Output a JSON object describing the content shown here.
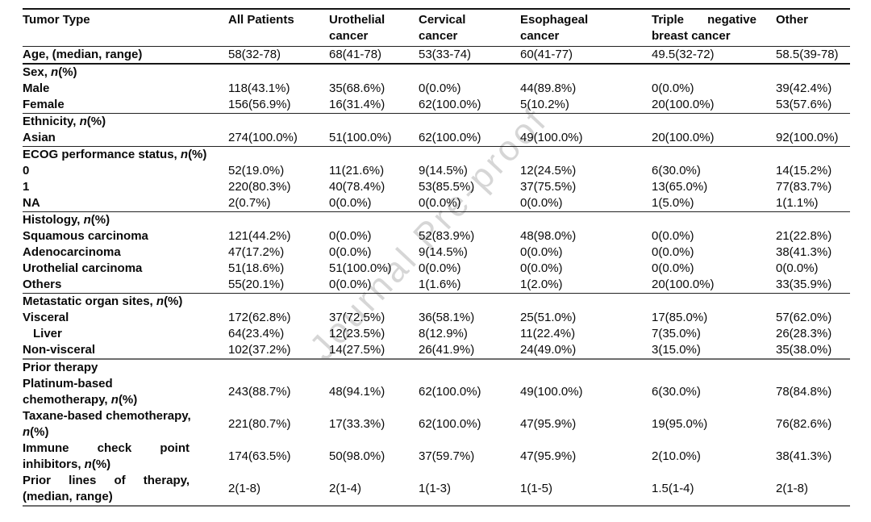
{
  "watermark": {
    "text": "Journal Pre-proof"
  },
  "table": {
    "columns": [
      {
        "lines": [
          {
            "parts": [
              {
                "t": "Tumor Type"
              }
            ]
          }
        ]
      },
      {
        "lines": [
          {
            "parts": [
              {
                "t": "All Patients"
              }
            ]
          }
        ]
      },
      {
        "lines": [
          {
            "parts": [
              {
                "t": "Urothelial"
              }
            ]
          },
          {
            "parts": [
              {
                "t": "cancer"
              }
            ]
          }
        ]
      },
      {
        "lines": [
          {
            "parts": [
              {
                "t": "Cervical"
              }
            ]
          },
          {
            "parts": [
              {
                "t": "cancer"
              }
            ]
          }
        ]
      },
      {
        "lines": [
          {
            "parts": [
              {
                "t": "Esophageal"
              }
            ]
          },
          {
            "parts": [
              {
                "t": "cancer"
              }
            ]
          }
        ]
      },
      {
        "lines": [
          {
            "parts": [
              {
                "t": "Triple negative"
              }
            ],
            "j": true
          },
          {
            "parts": [
              {
                "t": "breast cancer"
              }
            ]
          }
        ]
      },
      {
        "lines": [
          {
            "parts": [
              {
                "t": "Other"
              }
            ]
          }
        ]
      }
    ],
    "rows": [
      {
        "label": [
          {
            "parts": [
              {
                "t": "Age, (median, range)"
              }
            ]
          }
        ],
        "values": [
          "58(32-78)",
          "68(41-78)",
          "53(33-74)",
          "60(41-77)",
          "49.5(32-72)",
          "58.5(39-78)"
        ],
        "border": "b2"
      },
      {
        "label": [
          {
            "parts": [
              {
                "t": "Sex, "
              },
              {
                "t": "n",
                "i": true
              },
              {
                "t": "(%)"
              }
            ]
          }
        ],
        "values": [
          "",
          "",
          "",
          "",
          "",
          ""
        ]
      },
      {
        "label": [
          {
            "parts": [
              {
                "t": "Male"
              }
            ]
          }
        ],
        "values": [
          "118(43.1%)",
          "35(68.6%)",
          "0(0.0%)",
          "44(89.8%)",
          "0(0.0%)",
          "39(42.4%)"
        ]
      },
      {
        "label": [
          {
            "parts": [
              {
                "t": "Female"
              }
            ]
          }
        ],
        "values": [
          "156(56.9%)",
          "16(31.4%)",
          "62(100.0%)",
          "5(10.2%)",
          "20(100.0%)",
          "53(57.6%)"
        ],
        "border": "b1"
      },
      {
        "label": [
          {
            "parts": [
              {
                "t": "Ethnicity, "
              },
              {
                "t": "n",
                "i": true
              },
              {
                "t": "(%)"
              }
            ]
          }
        ],
        "values": [
          "",
          "",
          "",
          "",
          "",
          ""
        ]
      },
      {
        "label": [
          {
            "parts": [
              {
                "t": "Asian"
              }
            ]
          }
        ],
        "values": [
          "274(100.0%)",
          "51(100.0%)",
          "62(100.0%)",
          "49(100.0%)",
          "20(100.0%)",
          "92(100.0%)"
        ],
        "border": "b1"
      },
      {
        "label": [
          {
            "parts": [
              {
                "t": "ECOG performance status, "
              },
              {
                "t": "n",
                "i": true
              },
              {
                "t": "(%)"
              }
            ]
          }
        ],
        "values": [
          "",
          "",
          "",
          "",
          "",
          ""
        ]
      },
      {
        "label": [
          {
            "parts": [
              {
                "t": "0"
              }
            ]
          }
        ],
        "values": [
          "52(19.0%)",
          "11(21.6%)",
          "9(14.5%)",
          "12(24.5%)",
          "6(30.0%)",
          "14(15.2%)"
        ]
      },
      {
        "label": [
          {
            "parts": [
              {
                "t": "1"
              }
            ]
          }
        ],
        "values": [
          "220(80.3%)",
          "40(78.4%)",
          "53(85.5%)",
          "37(75.5%)",
          "13(65.0%)",
          "77(83.7%)"
        ]
      },
      {
        "label": [
          {
            "parts": [
              {
                "t": "NA"
              }
            ]
          }
        ],
        "values": [
          "2(0.7%)",
          "0(0.0%)",
          "0(0.0%)",
          "0(0.0%)",
          "1(5.0%)",
          "1(1.1%)"
        ],
        "border": "b1"
      },
      {
        "label": [
          {
            "parts": [
              {
                "t": "Histology, "
              },
              {
                "t": "n",
                "i": true
              },
              {
                "t": "(%)"
              }
            ]
          }
        ],
        "values": [
          "",
          "",
          "",
          "",
          "",
          ""
        ]
      },
      {
        "label": [
          {
            "parts": [
              {
                "t": "Squamous carcinoma"
              }
            ]
          }
        ],
        "values": [
          "121(44.2%)",
          "0(0.0%)",
          "52(83.9%)",
          "48(98.0%)",
          "0(0.0%)",
          "21(22.8%)"
        ]
      },
      {
        "label": [
          {
            "parts": [
              {
                "t": "Adenocarcinoma"
              }
            ]
          }
        ],
        "values": [
          "47(17.2%)",
          "0(0.0%)",
          "9(14.5%)",
          "0(0.0%)",
          "0(0.0%)",
          "38(41.3%)"
        ]
      },
      {
        "label": [
          {
            "parts": [
              {
                "t": "Urothelial carcinoma"
              }
            ]
          }
        ],
        "values": [
          "51(18.6%)",
          "51(100.0%)",
          "0(0.0%)",
          "0(0.0%)",
          "0(0.0%)",
          "0(0.0%)"
        ]
      },
      {
        "label": [
          {
            "parts": [
              {
                "t": "Others"
              }
            ]
          }
        ],
        "values": [
          "55(20.1%)",
          "0(0.0%)",
          "1(1.6%)",
          "1(2.0%)",
          "20(100.0%)",
          "33(35.9%)"
        ],
        "border": "b1"
      },
      {
        "label": [
          {
            "parts": [
              {
                "t": "Metastatic organ sites, "
              },
              {
                "t": "n",
                "i": true
              },
              {
                "t": "(%)"
              }
            ]
          }
        ],
        "values": [
          "",
          "",
          "",
          "",
          "",
          ""
        ]
      },
      {
        "label": [
          {
            "parts": [
              {
                "t": "Visceral"
              }
            ]
          }
        ],
        "values": [
          "172(62.8%)",
          "37(72.5%)",
          "36(58.1%)",
          "25(51.0%)",
          "17(85.0%)",
          "57(62.0%)"
        ]
      },
      {
        "label": [
          {
            "parts": [
              {
                "t": "Liver"
              }
            ]
          }
        ],
        "indent": true,
        "values": [
          "64(23.4%)",
          "12(23.5%)",
          "8(12.9%)",
          "11(22.4%)",
          "7(35.0%)",
          "26(28.3%)"
        ]
      },
      {
        "label": [
          {
            "parts": [
              {
                "t": "Non-visceral"
              }
            ]
          }
        ],
        "values": [
          "102(37.2%)",
          "14(27.5%)",
          "26(41.9%)",
          "24(49.0%)",
          "3(15.0%)",
          "35(38.0%)"
        ],
        "border": "b3"
      },
      {
        "label": [
          {
            "parts": [
              {
                "t": "Prior therapy"
              }
            ]
          }
        ],
        "values": [
          "",
          "",
          "",
          "",
          "",
          ""
        ]
      },
      {
        "label": [
          {
            "parts": [
              {
                "t": "Platinum-based"
              }
            ]
          },
          {
            "parts": [
              {
                "t": "chemotherapy, "
              },
              {
                "t": "n",
                "i": true
              },
              {
                "t": "(%)"
              }
            ]
          }
        ],
        "values": [
          "243(88.7%)",
          "48(94.1%)",
          "62(100.0%)",
          "49(100.0%)",
          "6(30.0%)",
          "78(84.8%)"
        ]
      },
      {
        "label": [
          {
            "parts": [
              {
                "t": "Taxane-based chemotherapy,"
              }
            ],
            "j": true
          },
          {
            "parts": [
              {
                "t": "n",
                "i": true
              },
              {
                "t": "(%)"
              }
            ]
          }
        ],
        "values": [
          "221(80.7%)",
          "17(33.3%)",
          "62(100.0%)",
          "47(95.9%)",
          "19(95.0%)",
          "76(82.6%)"
        ]
      },
      {
        "label": [
          {
            "parts": [
              {
                "t": "Immune check point"
              }
            ],
            "j": true
          },
          {
            "parts": [
              {
                "t": "inhibitors, "
              },
              {
                "t": "n",
                "i": true
              },
              {
                "t": "(%)"
              }
            ]
          }
        ],
        "values": [
          "174(63.5%)",
          "50(98.0%)",
          "37(59.7%)",
          "47(95.9%)",
          "2(10.0%)",
          "38(41.3%)"
        ]
      },
      {
        "label": [
          {
            "parts": [
              {
                "t": "Prior lines of therapy,"
              }
            ],
            "j": true
          },
          {
            "parts": [
              {
                "t": "(median, range)"
              }
            ]
          }
        ],
        "values": [
          "2(1-8)",
          "2(1-4)",
          "1(1-3)",
          "1(1-5)",
          "1.5(1-4)",
          "2(1-8)"
        ],
        "border": "b3"
      }
    ]
  }
}
